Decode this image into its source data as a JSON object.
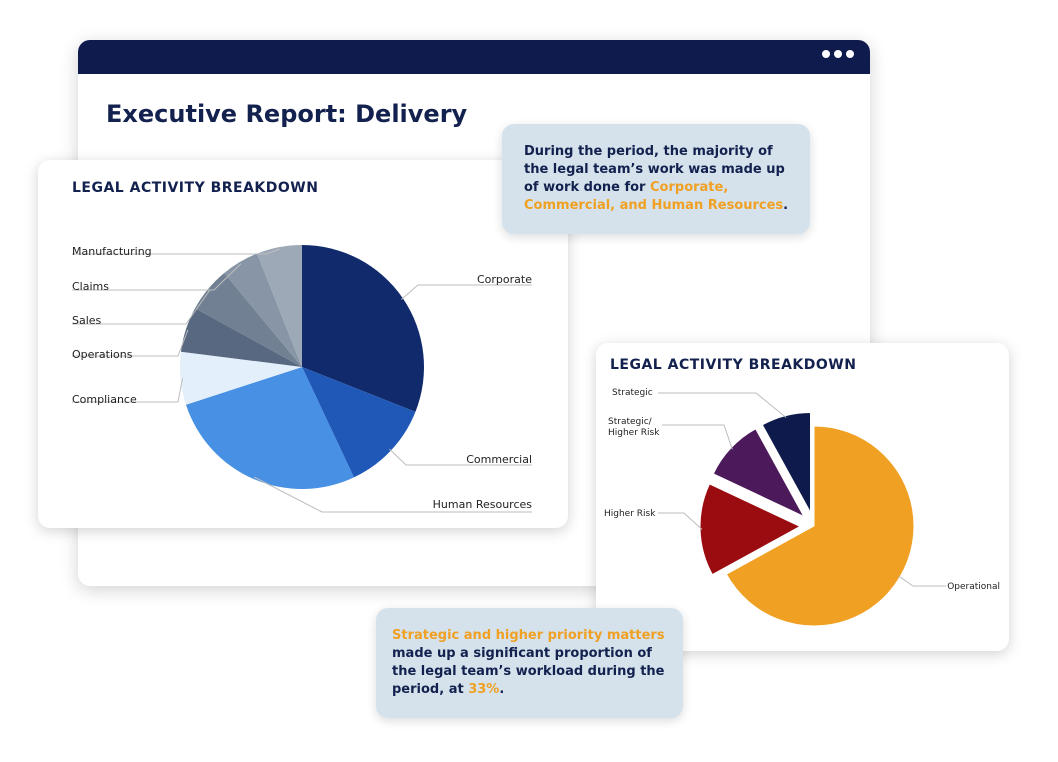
{
  "window": {
    "title": "Executive Report: Delivery",
    "menu_icon": "more-horizontal-icon"
  },
  "callout_top": {
    "text_before": "During the period, the majority of the legal team’s work was made up of work done for ",
    "highlight": "Corporate, Commercial, and Human Resources",
    "text_after": "."
  },
  "callout_bottom": {
    "highlight": "Strategic and higher priority matters",
    "text_middle": " made up a significant proportion of the legal team’s workload during the period, at ",
    "highlight_value": "33%",
    "text_after": "."
  },
  "colors": {
    "navy": "#0f1b4c",
    "accent": "#f0a022",
    "callout_bg": "#d5e2ec"
  },
  "chart_data": [
    {
      "type": "pie",
      "title": "LEGAL ACTIVITY BREAKDOWN",
      "categories": [
        "Corporate",
        "Commercial",
        "Human Resources",
        "Compliance",
        "Operations",
        "Sales",
        "Claims",
        "Manufacturing"
      ],
      "values": [
        31,
        12,
        27,
        7,
        6,
        6,
        5,
        6
      ],
      "colors": [
        "#102a6c",
        "#2058b8",
        "#4790e4",
        "#e3f0fb",
        "#586880",
        "#718092",
        "#8795a6",
        "#9da9b6"
      ],
      "legend": "callout-labels"
    },
    {
      "type": "pie",
      "title": "LEGAL ACTIVITY BREAKDOWN",
      "categories": [
        "Operational",
        "Higher Risk",
        "Strategic/ Higher Risk",
        "Strategic"
      ],
      "values": [
        67,
        15,
        10,
        8
      ],
      "colors": [
        "#f0a022",
        "#9a0c0f",
        "#4c1a5a",
        "#0e1a4c"
      ],
      "exploded": [
        false,
        true,
        true,
        true
      ],
      "legend": "callout-labels"
    }
  ]
}
